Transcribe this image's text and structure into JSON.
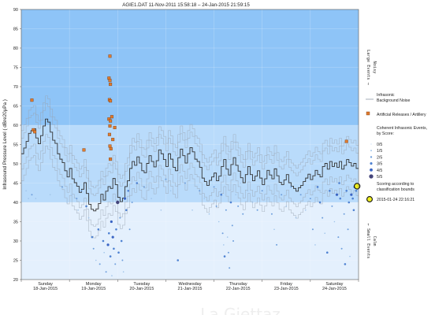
{
  "chart_data": {
    "type": "line",
    "title": "AGIE1.DAT   11-Nov-2011 15:58:18   –   24-Jan-2015 21:59:15",
    "ylabel": "Infrasound Pressure Level  ( dBre20μPa )",
    "ylim": [
      20,
      90
    ],
    "y_ticks": [
      20,
      25,
      30,
      35,
      40,
      45,
      50,
      55,
      60,
      65,
      70,
      75,
      80,
      85,
      90
    ],
    "xlim": [
      0,
      7
    ],
    "day_ticks": [
      {
        "day": "Sunday",
        "date": "18-Jan-2015"
      },
      {
        "day": "Monday",
        "date": "19-Jan-2015"
      },
      {
        "day": "Tuesday",
        "date": "20-Jan-2015"
      },
      {
        "day": "Wednesday",
        "date": "21-Jan-2015"
      },
      {
        "day": "Thursday",
        "date": "22-Jan-2015"
      },
      {
        "day": "Friday",
        "date": "23-Jan-2015"
      },
      {
        "day": "Saturday",
        "date": "24-Jan-2015"
      }
    ],
    "zones": [
      {
        "from": 60,
        "to": 90,
        "color": "#8ec4f7"
      },
      {
        "from": 40,
        "to": 60,
        "color": "#b9dbfb"
      },
      {
        "from": 20,
        "to": 40,
        "color": "#e4f0fd"
      }
    ],
    "right_labels": [
      {
        "text": "Large Events →",
        "y": 75
      },
      {
        "text": "Noisy",
        "y": 75
      },
      {
        "text": "← Small Events",
        "y": 30
      },
      {
        "text": "Calm",
        "y": 30
      }
    ],
    "legend": {
      "noise": "Infrasonic Background Noise",
      "artillery": "Artificial Releases / Artillery",
      "coherent_title": "Coherent Infrasonic Events, by Score:",
      "scores": [
        "0/5",
        "1/5",
        "2/5",
        "3/5",
        "4/5",
        "5/5"
      ],
      "scoring_note": "Scoring according to classification bounds",
      "latest": "2015-01-24 22:16:21"
    },
    "colors": {
      "noise": "#333333",
      "noise_envelope": "#9aa4b0",
      "artillery": "#e07b2e",
      "score": [
        "#cfe3f7",
        "#9fc3ea",
        "#6f9fdc",
        "#4f82d2",
        "#3a64c4",
        "#44447a"
      ],
      "latest": "#f0f020"
    },
    "noise_series": [
      [
        0.0,
        52.6
      ],
      [
        0.05,
        54.1
      ],
      [
        0.1,
        55.8
      ],
      [
        0.15,
        57.9
      ],
      [
        0.2,
        58.6
      ],
      [
        0.25,
        59.1
      ],
      [
        0.3,
        56.7
      ],
      [
        0.35,
        55.2
      ],
      [
        0.4,
        57.3
      ],
      [
        0.45,
        59.8
      ],
      [
        0.5,
        61.6
      ],
      [
        0.55,
        60.8
      ],
      [
        0.6,
        58.2
      ],
      [
        0.65,
        56.1
      ],
      [
        0.7,
        55.3
      ],
      [
        0.75,
        52.6
      ],
      [
        0.8,
        51.2
      ],
      [
        0.85,
        50.3
      ],
      [
        0.9,
        48.2
      ],
      [
        0.95,
        46.6
      ],
      [
        1.0,
        48.8
      ],
      [
        1.05,
        46.1
      ],
      [
        1.1,
        45.1
      ],
      [
        1.15,
        44.2
      ],
      [
        1.2,
        42.6
      ],
      [
        1.25,
        43.4
      ],
      [
        1.3,
        45.1
      ],
      [
        1.35,
        42.3
      ],
      [
        1.4,
        39.5
      ],
      [
        1.45,
        38.2
      ],
      [
        1.5,
        37.8
      ],
      [
        1.55,
        38.3
      ],
      [
        1.6,
        39.7
      ],
      [
        1.65,
        42.1
      ],
      [
        1.7,
        40.6
      ],
      [
        1.75,
        42.9
      ],
      [
        1.8,
        44.1
      ],
      [
        1.85,
        43.6
      ],
      [
        1.9,
        46.2
      ],
      [
        1.95,
        44.6
      ],
      [
        2.0,
        41.3
      ],
      [
        2.05,
        40.2
      ],
      [
        2.1,
        41.1
      ],
      [
        2.15,
        44.1
      ],
      [
        2.2,
        45.6
      ],
      [
        2.25,
        48.8
      ],
      [
        2.3,
        50.6
      ],
      [
        2.35,
        49.6
      ],
      [
        2.4,
        51.8
      ],
      [
        2.45,
        50.2
      ],
      [
        2.5,
        48.2
      ],
      [
        2.55,
        47.7
      ],
      [
        2.6,
        50.1
      ],
      [
        2.65,
        52.1
      ],
      [
        2.7,
        50.6
      ],
      [
        2.75,
        49.2
      ],
      [
        2.8,
        50.8
      ],
      [
        2.85,
        53.6
      ],
      [
        2.9,
        52.6
      ],
      [
        2.95,
        51.1
      ],
      [
        3.0,
        49.3
      ],
      [
        3.05,
        52.6
      ],
      [
        3.1,
        51.2
      ],
      [
        3.15,
        49.1
      ],
      [
        3.2,
        48.2
      ],
      [
        3.25,
        51.6
      ],
      [
        3.3,
        53.8
      ],
      [
        3.35,
        52.1
      ],
      [
        3.4,
        50.2
      ],
      [
        3.45,
        52.6
      ],
      [
        3.5,
        54.2
      ],
      [
        3.55,
        53.1
      ],
      [
        3.6,
        51.2
      ],
      [
        3.65,
        50.6
      ],
      [
        3.7,
        49.1
      ],
      [
        3.75,
        46.3
      ],
      [
        3.8,
        45.4
      ],
      [
        3.85,
        44.4
      ],
      [
        3.9,
        45.7
      ],
      [
        3.95,
        46.6
      ],
      [
        4.0,
        47.6
      ],
      [
        4.05,
        45.6
      ],
      [
        4.1,
        46.8
      ],
      [
        4.15,
        49.3
      ],
      [
        4.2,
        51.1
      ],
      [
        4.25,
        48.6
      ],
      [
        4.3,
        47.1
      ],
      [
        4.35,
        49.8
      ],
      [
        4.4,
        51.6
      ],
      [
        4.45,
        49.6
      ],
      [
        4.5,
        48.1
      ],
      [
        4.55,
        46.4
      ],
      [
        4.6,
        45.1
      ],
      [
        4.65,
        47.2
      ],
      [
        4.7,
        49.3
      ],
      [
        4.75,
        47.2
      ],
      [
        4.8,
        45.6
      ],
      [
        4.85,
        46.8
      ],
      [
        4.9,
        48.2
      ],
      [
        4.95,
        46.3
      ],
      [
        5.0,
        44.6
      ],
      [
        5.05,
        46.1
      ],
      [
        5.1,
        48.3
      ],
      [
        5.15,
        47.1
      ],
      [
        5.2,
        46.1
      ],
      [
        5.25,
        48.7
      ],
      [
        5.3,
        46.9
      ],
      [
        5.35,
        45.2
      ],
      [
        5.4,
        44.6
      ],
      [
        5.45,
        45.8
      ],
      [
        5.5,
        47.2
      ],
      [
        5.55,
        45.1
      ],
      [
        5.6,
        44.2
      ],
      [
        5.65,
        43.6
      ],
      [
        5.7,
        42.9
      ],
      [
        5.75,
        43.8
      ],
      [
        5.8,
        44.4
      ],
      [
        5.85,
        45.4
      ],
      [
        5.9,
        46.3
      ],
      [
        5.95,
        47.3
      ],
      [
        6.0,
        45.9
      ],
      [
        6.05,
        46.9
      ],
      [
        6.1,
        48.3
      ],
      [
        6.15,
        47.2
      ],
      [
        6.2,
        46.6
      ],
      [
        6.25,
        49.3
      ],
      [
        6.3,
        50.1
      ],
      [
        6.35,
        48.6
      ],
      [
        6.4,
        50.6
      ],
      [
        6.45,
        49.3
      ],
      [
        6.5,
        50.2
      ],
      [
        6.55,
        49.1
      ],
      [
        6.6,
        50.6
      ],
      [
        6.65,
        48.6
      ],
      [
        6.7,
        49.6
      ],
      [
        6.75,
        51.1
      ],
      [
        6.8,
        50.3
      ],
      [
        6.85,
        49.4
      ],
      [
        6.9,
        50.1
      ],
      [
        6.95,
        48.8
      ]
    ],
    "artillery_points": [
      [
        0.22,
        66.5
      ],
      [
        0.25,
        58.8
      ],
      [
        0.28,
        58.3
      ],
      [
        1.3,
        53.6
      ],
      [
        1.84,
        77.9
      ],
      [
        1.82,
        72.2
      ],
      [
        1.84,
        71.6
      ],
      [
        1.85,
        70.6
      ],
      [
        1.83,
        66.6
      ],
      [
        1.85,
        66.3
      ],
      [
        1.82,
        61.6
      ],
      [
        1.85,
        61.1
      ],
      [
        1.84,
        59.8
      ],
      [
        1.88,
        62.2
      ],
      [
        1.83,
        57.6
      ],
      [
        1.84,
        54.6
      ],
      [
        1.86,
        53.9
      ],
      [
        1.85,
        51.2
      ],
      [
        1.9,
        56.3
      ],
      [
        1.94,
        59.4
      ],
      [
        6.75,
        55.8
      ]
    ],
    "events": [
      [
        0.1,
        43,
        1
      ],
      [
        0.15,
        41,
        1
      ],
      [
        0.22,
        42,
        2
      ],
      [
        0.3,
        41,
        1
      ],
      [
        0.6,
        42,
        1
      ],
      [
        0.85,
        44,
        2
      ],
      [
        0.95,
        40,
        1
      ],
      [
        1.05,
        42,
        1
      ],
      [
        1.15,
        41,
        2
      ],
      [
        1.18,
        38,
        1
      ],
      [
        1.25,
        43,
        2
      ],
      [
        1.35,
        39,
        3
      ],
      [
        1.4,
        36,
        1
      ],
      [
        1.47,
        31,
        3
      ],
      [
        1.5,
        28,
        2
      ],
      [
        1.55,
        25,
        1
      ],
      [
        1.6,
        33,
        3
      ],
      [
        1.63,
        24,
        2
      ],
      [
        1.7,
        30,
        3
      ],
      [
        1.72,
        27,
        1
      ],
      [
        1.76,
        22,
        2
      ],
      [
        1.8,
        29,
        4
      ],
      [
        1.82,
        32,
        3
      ],
      [
        1.85,
        26,
        3
      ],
      [
        1.87,
        35,
        4
      ],
      [
        1.88,
        21,
        1
      ],
      [
        1.9,
        31,
        4
      ],
      [
        1.92,
        28,
        3
      ],
      [
        1.95,
        24,
        2
      ],
      [
        1.97,
        33,
        3
      ],
      [
        2.0,
        40,
        5
      ],
      [
        2.02,
        27,
        3
      ],
      [
        2.05,
        36,
        2
      ],
      [
        2.08,
        30,
        3
      ],
      [
        2.1,
        25,
        2
      ],
      [
        2.12,
        22,
        1
      ],
      [
        2.15,
        41,
        4
      ],
      [
        2.18,
        38,
        3
      ],
      [
        2.22,
        43,
        3
      ],
      [
        2.25,
        33,
        2
      ],
      [
        2.3,
        40,
        2
      ],
      [
        2.4,
        45,
        3
      ],
      [
        2.55,
        44,
        2
      ],
      [
        2.7,
        41,
        1
      ],
      [
        2.9,
        38,
        1
      ],
      [
        3.0,
        46,
        2
      ],
      [
        3.1,
        43,
        1
      ],
      [
        3.25,
        25,
        3
      ],
      [
        3.4,
        45,
        2
      ],
      [
        3.55,
        38,
        1
      ],
      [
        3.7,
        43,
        2
      ],
      [
        3.8,
        41,
        1
      ],
      [
        3.9,
        37,
        1
      ],
      [
        4.0,
        44,
        2
      ],
      [
        4.05,
        39,
        2
      ],
      [
        4.1,
        35,
        1
      ],
      [
        4.15,
        42,
        3
      ],
      [
        4.18,
        32,
        2
      ],
      [
        4.2,
        29,
        1
      ],
      [
        4.22,
        26,
        3
      ],
      [
        4.25,
        38,
        2
      ],
      [
        4.28,
        31,
        1
      ],
      [
        4.3,
        27,
        2
      ],
      [
        4.32,
        23,
        2
      ],
      [
        4.35,
        40,
        3
      ],
      [
        4.38,
        34,
        2
      ],
      [
        4.4,
        30,
        2
      ],
      [
        4.45,
        42,
        1
      ],
      [
        4.5,
        39,
        2
      ],
      [
        4.55,
        45,
        1
      ],
      [
        4.6,
        37,
        2
      ],
      [
        4.7,
        43,
        1
      ],
      [
        4.8,
        40,
        1
      ],
      [
        4.9,
        38,
        2
      ],
      [
        5.0,
        43,
        2
      ],
      [
        5.1,
        41,
        1
      ],
      [
        5.2,
        37,
        2
      ],
      [
        5.25,
        33,
        1
      ],
      [
        5.3,
        29,
        2
      ],
      [
        5.4,
        42,
        2
      ],
      [
        5.5,
        39,
        1
      ],
      [
        5.6,
        44,
        2
      ],
      [
        5.7,
        36,
        1
      ],
      [
        5.8,
        42,
        2
      ],
      [
        5.9,
        38,
        1
      ],
      [
        6.0,
        41,
        2
      ],
      [
        6.05,
        33,
        2
      ],
      [
        6.1,
        29,
        1
      ],
      [
        6.15,
        44,
        3
      ],
      [
        6.2,
        40,
        3
      ],
      [
        6.25,
        36,
        2
      ],
      [
        6.3,
        32,
        1
      ],
      [
        6.35,
        27,
        3
      ],
      [
        6.4,
        43,
        3
      ],
      [
        6.45,
        39,
        2
      ],
      [
        6.5,
        35,
        1
      ],
      [
        6.55,
        42,
        4
      ],
      [
        6.58,
        31,
        2
      ],
      [
        6.6,
        45,
        3
      ],
      [
        6.62,
        41,
        3
      ],
      [
        6.65,
        28,
        2
      ],
      [
        6.7,
        37,
        2
      ],
      [
        6.72,
        24,
        3
      ],
      [
        6.75,
        43,
        3
      ],
      [
        6.78,
        33,
        2
      ],
      [
        6.8,
        40,
        3
      ],
      [
        6.82,
        26,
        1
      ],
      [
        6.85,
        42,
        4
      ],
      [
        6.88,
        41,
        3
      ],
      [
        6.9,
        38,
        3
      ],
      [
        6.92,
        44,
        4
      ],
      [
        6.95,
        43,
        3
      ]
    ],
    "latest_event": [
      6.97,
      44.2
    ]
  },
  "watermark": "La Giettaz"
}
